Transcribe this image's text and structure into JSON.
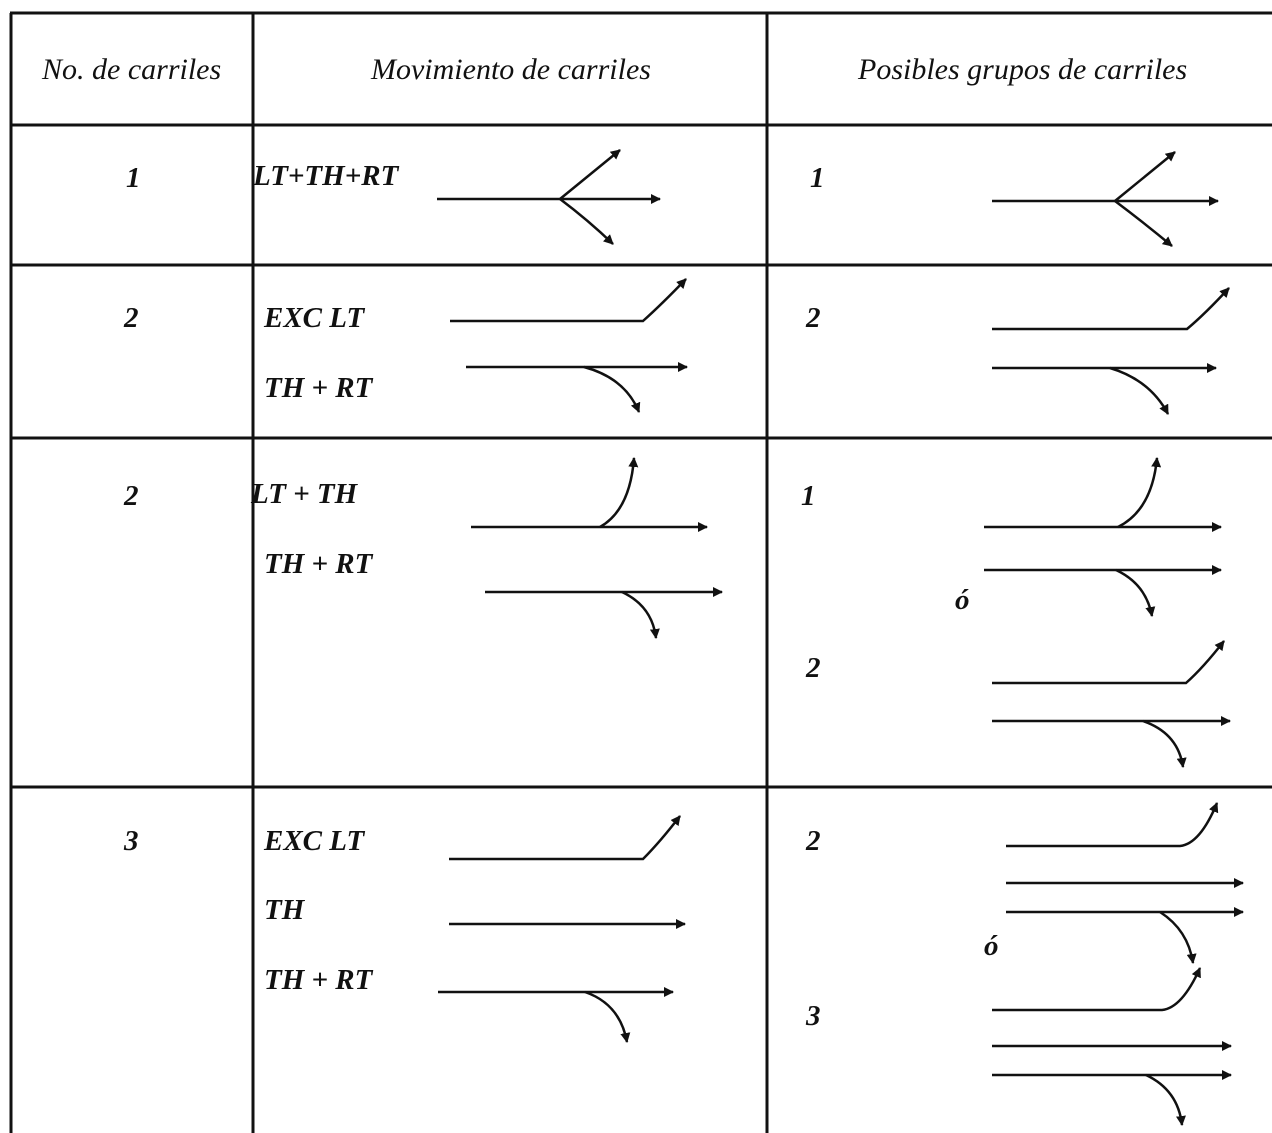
{
  "table": {
    "headers": {
      "lanes": "No. de carriles",
      "movement": "Movimiento de carriles",
      "groups": "Posibles grupos de carriles"
    },
    "rows": [
      {
        "lanes": "1",
        "movements": [
          "LT+TH+RT"
        ],
        "groups": [
          "1"
        ]
      },
      {
        "lanes": "2",
        "movements": [
          "EXC LT",
          "TH + RT"
        ],
        "groups": [
          "2"
        ]
      },
      {
        "lanes": "2",
        "movements": [
          "LT + TH",
          "TH + RT"
        ],
        "groups": [
          "1",
          "2"
        ],
        "or_label": "ó"
      },
      {
        "lanes": "3",
        "movements": [
          "EXC LT",
          "TH",
          "TH + RT"
        ],
        "groups": [
          "2",
          "3"
        ],
        "or_label": "ó"
      }
    ]
  },
  "colors": {
    "ink": "#111111",
    "background": "#ffffff"
  }
}
